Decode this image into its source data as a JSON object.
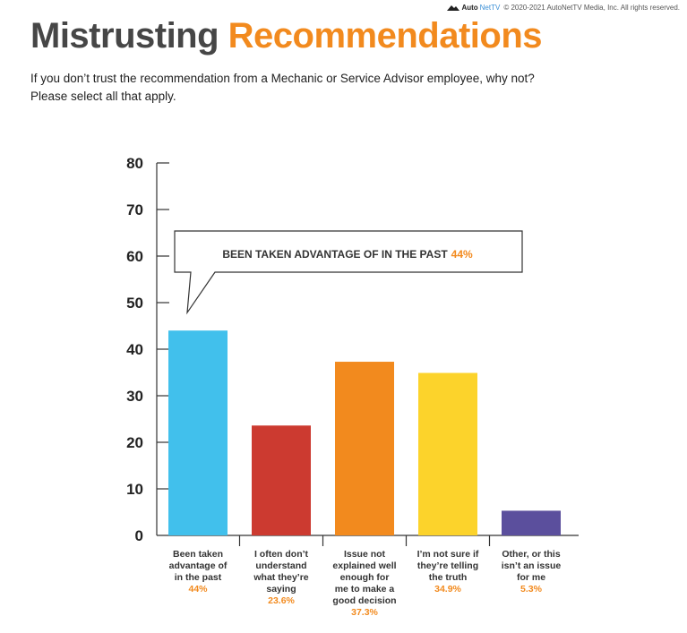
{
  "header": {
    "logo_bold": "Auto",
    "logo_light": "NetTV",
    "copyright": "© 2020-2021 AutoNetTV Media, Inc. All rights reserved.",
    "title_part1": "Mistrusting",
    "title_part2": "Recommendations",
    "subtitle_line1": "If you don’t trust the recommendation from a Mechanic or Service Advisor employee, why not?",
    "subtitle_line2": "Please select all that apply."
  },
  "callout": {
    "text": "BEEN TAKEN ADVANTAGE OF IN THE PAST",
    "value": "44%"
  },
  "chart_data": {
    "type": "bar",
    "ylim": [
      0,
      80
    ],
    "yticks": [
      0,
      10,
      20,
      30,
      40,
      50,
      60,
      70,
      80
    ],
    "grid": false,
    "categories": [
      {
        "lines": [
          "Been taken",
          "advantage of",
          "in the past"
        ],
        "value": 44,
        "label": "44%",
        "color": "#41c0ec"
      },
      {
        "lines": [
          "I often don’t",
          "understand",
          "what they’re",
          "saying"
        ],
        "value": 23.6,
        "label": "23.6%",
        "color": "#cc3a30"
      },
      {
        "lines": [
          "Issue not",
          "explained well",
          "enough for",
          "me to make a",
          "good decision"
        ],
        "value": 37.3,
        "label": "37.3%",
        "color": "#f28a1e"
      },
      {
        "lines": [
          "I’m not sure if",
          "they’re telling",
          "the truth"
        ],
        "value": 34.9,
        "label": "34.9%",
        "color": "#fcd32b"
      },
      {
        "lines": [
          "Other, or this",
          "isn’t an issue",
          "for me"
        ],
        "value": 5.3,
        "label": "5.3%",
        "color": "#5b4f9d"
      }
    ]
  }
}
